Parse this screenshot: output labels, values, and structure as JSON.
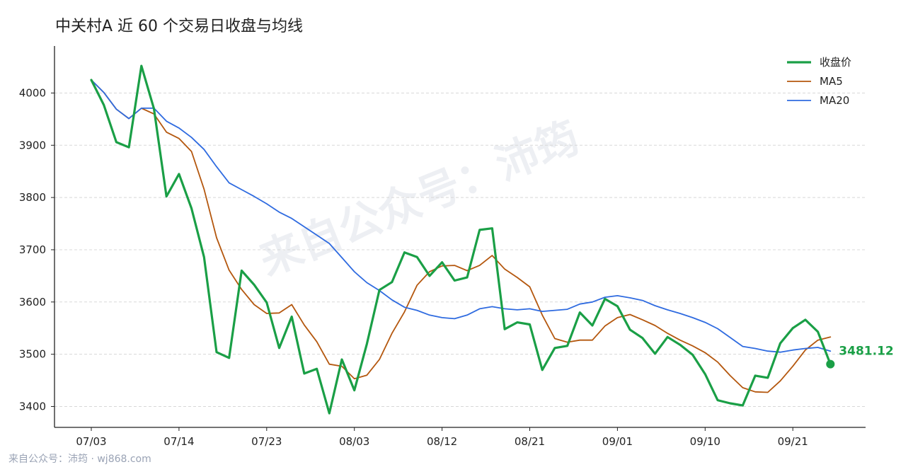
{
  "chart_data": {
    "type": "line",
    "title": "中关村A 近 60 个交易日收盘与均线",
    "ylim": [
      3360,
      4090
    ],
    "yticks": [
      3400,
      3500,
      3600,
      3700,
      3800,
      3900,
      4000
    ],
    "xticks": [
      {
        "index": 0,
        "label": "07/03"
      },
      {
        "index": 7,
        "label": "07/14"
      },
      {
        "index": 14,
        "label": "07/23"
      },
      {
        "index": 21,
        "label": "08/03"
      },
      {
        "index": 28,
        "label": "08/12"
      },
      {
        "index": 35,
        "label": "08/21"
      },
      {
        "index": 42,
        "label": "09/01"
      },
      {
        "index": 49,
        "label": "09/10"
      },
      {
        "index": 56,
        "label": "09/21"
      }
    ],
    "grid": "horizontal dashed",
    "legend_position": "top-right",
    "series": [
      {
        "name": "收盘价",
        "color": "#1a9f46",
        "values": [
          4025,
          3977,
          3906,
          3896,
          4052,
          3970,
          3802,
          3845,
          3779,
          3686,
          3504,
          3493,
          3660,
          3633,
          3599,
          3512,
          3572,
          3463,
          3472,
          3387,
          3490,
          3431,
          3520,
          3623,
          3638,
          3695,
          3686,
          3650,
          3676,
          3641,
          3647,
          3738,
          3741,
          3548,
          3561,
          3557,
          3470,
          3512,
          3516,
          3580,
          3555,
          3606,
          3592,
          3547,
          3531,
          3501,
          3533,
          3518,
          3499,
          3462,
          3412,
          3406,
          3402,
          3459,
          3455,
          3521,
          3550,
          3566,
          3543,
          3481.12
        ]
      },
      {
        "name": "MA5",
        "color": "#b4570e",
        "values": [
          4025,
          4001,
          3969,
          3951,
          3971,
          3960,
          3925,
          3913,
          3888,
          3816,
          3723,
          3661,
          3624,
          3595,
          3578,
          3579,
          3595,
          3556,
          3524,
          3481,
          3477,
          3453,
          3460,
          3490,
          3540,
          3581,
          3632,
          3658,
          3669,
          3670,
          3660,
          3670,
          3689,
          3663,
          3647,
          3629,
          3575,
          3530,
          3523,
          3527,
          3527,
          3554,
          3570,
          3576,
          3566,
          3555,
          3540,
          3527,
          3516,
          3503,
          3485,
          3459,
          3436,
          3428,
          3427,
          3449,
          3477,
          3508,
          3527,
          3533
        ]
      },
      {
        "name": "MA20",
        "color": "#2f6be0",
        "values": [
          4025,
          4001,
          3969,
          3951,
          3971,
          3971,
          3946,
          3933,
          3915,
          3892,
          3859,
          3828,
          3815,
          3802,
          3788,
          3772,
          3760,
          3744,
          3728,
          3712,
          3685,
          3658,
          3637,
          3622,
          3604,
          3590,
          3584,
          3575,
          3570,
          3568,
          3575,
          3587,
          3591,
          3587,
          3585,
          3587,
          3582,
          3584,
          3586,
          3596,
          3600,
          3609,
          3612,
          3608,
          3603,
          3593,
          3585,
          3578,
          3570,
          3561,
          3549,
          3532,
          3515,
          3511,
          3506,
          3504,
          3508,
          3511,
          3513,
          3506
        ]
      }
    ],
    "last_value_label": "3481.12"
  },
  "footer": "来自公众号：沛筠 · wj868.com",
  "watermark": "来自公众号：沛筠"
}
